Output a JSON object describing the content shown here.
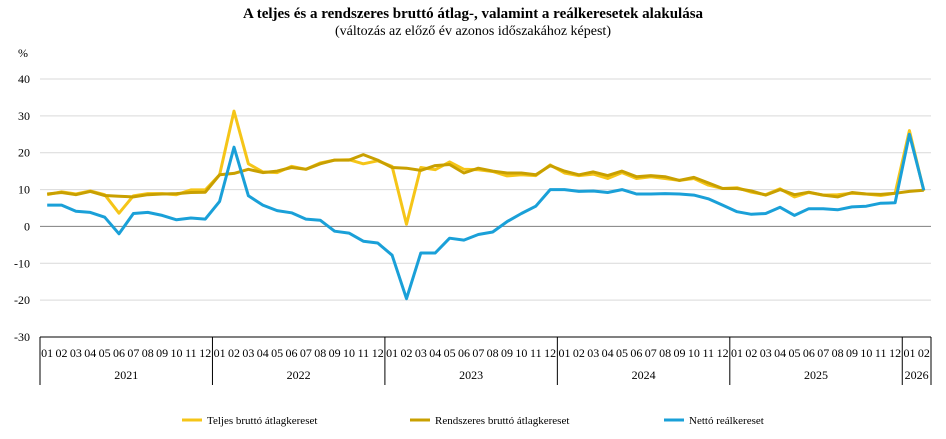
{
  "chart_data": {
    "type": "line",
    "title": "A teljes és a rendszeres bruttó átlag-, valamint a reálkeresetek alakulása",
    "subtitle": "(változás az előző év azonos időszakához képest)",
    "ylabel": "%",
    "ylim": [
      -30,
      40
    ],
    "yticks": [
      -30,
      -20,
      -10,
      0,
      10,
      20,
      30,
      40
    ],
    "grid": true,
    "legend_position": "bottom",
    "month_labels": [
      "01",
      "02",
      "03",
      "04",
      "05",
      "06",
      "07",
      "08",
      "09",
      "10",
      "11",
      "12"
    ],
    "years": [
      {
        "label": "2021",
        "months": 12
      },
      {
        "label": "2022",
        "months": 12
      },
      {
        "label": "2023",
        "months": 12
      },
      {
        "label": "2024",
        "months": 12
      },
      {
        "label": "2025",
        "months": 12
      },
      {
        "label": "2026",
        "months": 2
      }
    ],
    "series": [
      {
        "name": "Teljes bruttó átlagkereset",
        "color": "#f5c518",
        "values": [
          8.6,
          9.4,
          8.8,
          9.6,
          8.6,
          3.6,
          8.3,
          8.9,
          8.9,
          8.6,
          9.9,
          9.9,
          14.0,
          31.3,
          17.0,
          14.8,
          14.6,
          16.3,
          15.5,
          17.2,
          18.0,
          18.1,
          17.0,
          17.8,
          16.3,
          0.6,
          16.0,
          15.4,
          17.5,
          15.5,
          15.4,
          14.9,
          13.7,
          14.0,
          13.8,
          16.7,
          14.5,
          13.8,
          14.2,
          13.0,
          14.6,
          13.0,
          13.5,
          13.0,
          12.5,
          13.0,
          11.2,
          10.3,
          10.5,
          9.3,
          8.6,
          10.2,
          8.0,
          9.2,
          8.5,
          8.6,
          9.0,
          8.8,
          8.4,
          9.0,
          26.0,
          9.6
        ]
      },
      {
        "name": "Rendszeres bruttó átlagkereset",
        "color": "#c9a000",
        "values": [
          8.8,
          9.2,
          8.6,
          9.5,
          8.4,
          8.2,
          8.0,
          8.6,
          8.8,
          8.9,
          9.2,
          9.3,
          14.0,
          14.4,
          15.5,
          14.6,
          15.0,
          16.0,
          15.5,
          17.0,
          18.0,
          18.0,
          19.5,
          18.0,
          16.0,
          15.8,
          15.2,
          16.5,
          16.8,
          14.5,
          15.8,
          15.0,
          14.5,
          14.5,
          14.0,
          16.5,
          15.0,
          14.0,
          14.8,
          13.8,
          15.0,
          13.5,
          13.8,
          13.5,
          12.5,
          13.3,
          11.8,
          10.3,
          10.3,
          9.6,
          8.5,
          10.0,
          8.6,
          9.3,
          8.5,
          8.0,
          9.2,
          8.8,
          8.7,
          9.0,
          9.5,
          9.8
        ]
      },
      {
        "name": "Nettó reálkereset",
        "color": "#1aa0d8",
        "values": [
          5.8,
          5.8,
          4.1,
          3.8,
          2.5,
          -2.0,
          3.5,
          3.8,
          3.0,
          1.8,
          2.3,
          2.0,
          6.8,
          21.5,
          8.3,
          5.8,
          4.3,
          3.7,
          2.0,
          1.7,
          -1.3,
          -1.8,
          -4.0,
          -4.5,
          -7.8,
          -19.6,
          -7.2,
          -7.2,
          -3.2,
          -3.7,
          -2.2,
          -1.5,
          1.3,
          3.5,
          5.5,
          10.0,
          10.0,
          9.5,
          9.6,
          9.2,
          10.0,
          8.8,
          8.8,
          8.9,
          8.8,
          8.5,
          7.5,
          5.8,
          4.0,
          3.3,
          3.5,
          5.2,
          3.0,
          4.8,
          4.8,
          4.5,
          5.3,
          5.5,
          6.3,
          6.4,
          25.0,
          9.8
        ]
      }
    ]
  }
}
